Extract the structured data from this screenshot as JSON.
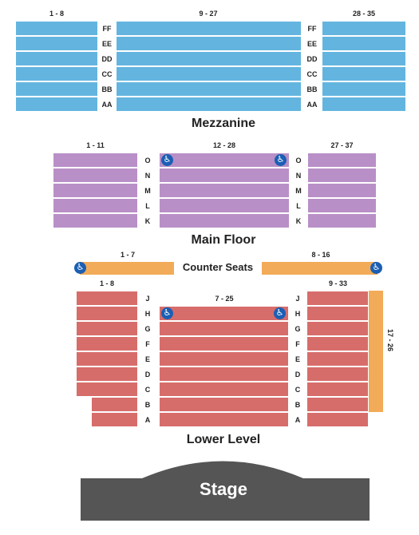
{
  "colors": {
    "mezzanine": "#63b5e0",
    "main_floor": "#b98fc7",
    "lower_level": "#d66d6b",
    "counter": "#f2ab58",
    "stage": "#555555",
    "accessible": "#1a5fb4"
  },
  "mezzanine": {
    "title": "Mezzanine",
    "rows": [
      "FF",
      "EE",
      "DD",
      "CC",
      "BB",
      "AA"
    ],
    "ranges": {
      "left": "1 - 8",
      "center": "9 - 27",
      "right": "28 - 35"
    }
  },
  "main_floor": {
    "title": "Main Floor",
    "rows": [
      "O",
      "N",
      "M",
      "L",
      "K"
    ],
    "ranges": {
      "left": "1 - 11",
      "center": "12 - 28",
      "right": "27 - 37"
    }
  },
  "counter": {
    "title": "Counter Seats",
    "ranges": {
      "left": "1 - 7",
      "right": "8 - 16"
    }
  },
  "lower_level": {
    "title": "Lower Level",
    "rows": [
      "J",
      "H",
      "G",
      "F",
      "E",
      "D",
      "C",
      "B",
      "A"
    ],
    "ranges": {
      "left": "1 - 8",
      "center": "7 - 25",
      "right": "9 - 33",
      "side": "17 - 26"
    }
  },
  "stage": {
    "label": "Stage"
  },
  "icons": {
    "accessible": "wheelchair-icon",
    "accessible_glyph": "♿"
  }
}
